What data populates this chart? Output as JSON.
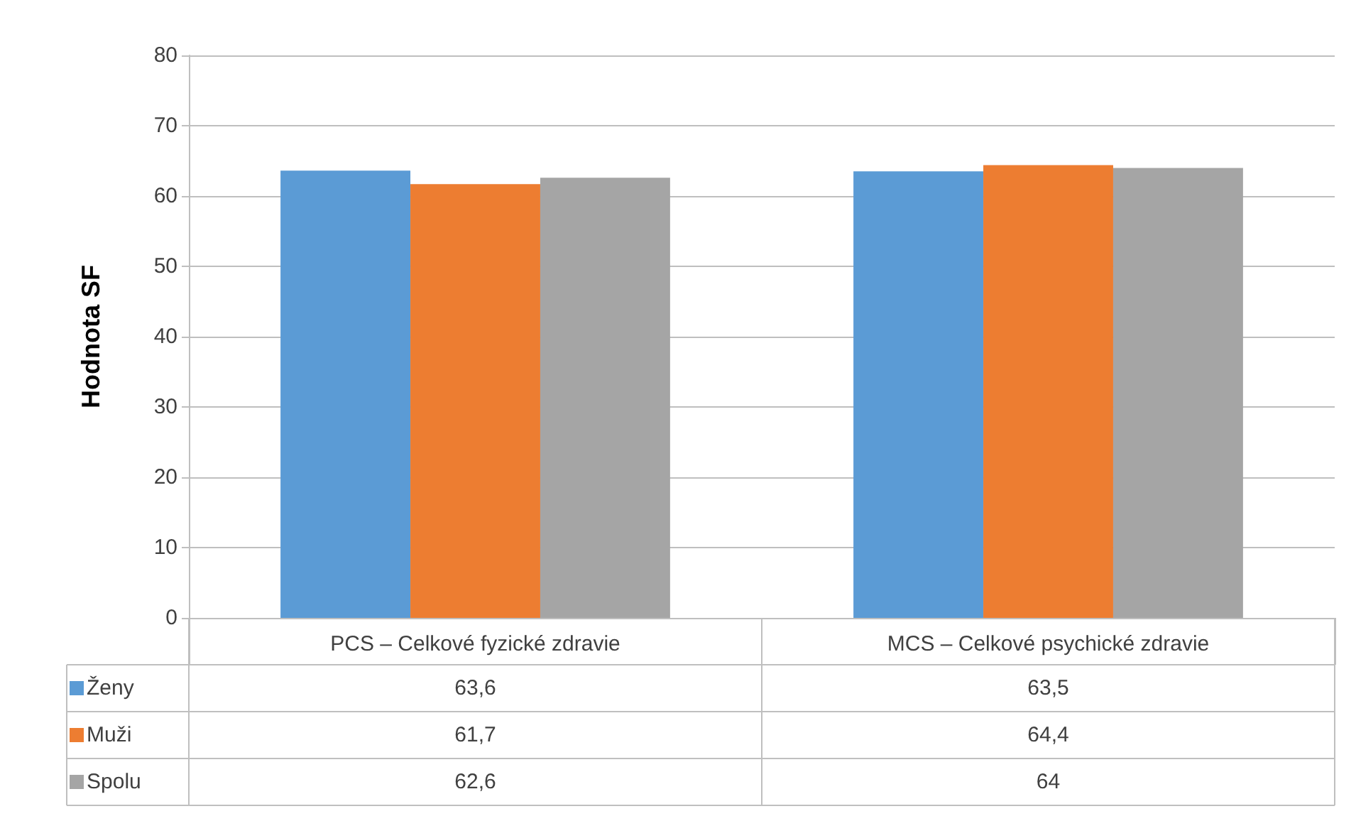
{
  "chart_data": {
    "type": "bar",
    "ylabel": "Hodnota SF",
    "categories": [
      "PCS – Celkové fyzické zdravie",
      "MCS – Celkové psychické zdravie"
    ],
    "series": [
      {
        "name": "Ženy",
        "color": "#5b9bd5",
        "values": [
          63.6,
          63.5
        ],
        "value_labels": [
          "63,6",
          "63,5"
        ]
      },
      {
        "name": "Muži",
        "color": "#ed7d31",
        "values": [
          61.7,
          64.4
        ],
        "value_labels": [
          "61,7",
          "64,4"
        ]
      },
      {
        "name": "Spolu",
        "color": "#a5a5a5",
        "values": [
          62.6,
          64
        ],
        "value_labels": [
          "62,6",
          "64"
        ]
      }
    ],
    "ylim": [
      0,
      80
    ],
    "yticks": [
      0,
      10,
      20,
      30,
      40,
      50,
      60,
      70,
      80
    ],
    "grid": "y",
    "legend": "bottom"
  }
}
